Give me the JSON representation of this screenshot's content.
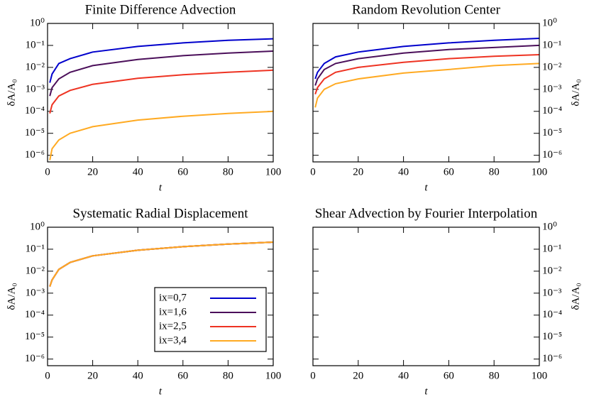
{
  "chart_data": [
    {
      "type": "line",
      "title": "Finite Difference Advection",
      "xlabel": "t",
      "ylabel": "δA/A₀",
      "y_axis_side": "left",
      "ylog": true,
      "x": [
        1,
        2,
        5,
        10,
        20,
        40,
        60,
        80,
        100
      ],
      "xlim": [
        0,
        100
      ],
      "xticks": [
        0,
        20,
        40,
        60,
        80,
        100
      ],
      "ylim": [
        5e-07,
        1
      ],
      "yticks": [
        {
          "value": 1e-06,
          "label": "10⁻⁶"
        },
        {
          "value": 1e-05,
          "label": "10⁻⁵"
        },
        {
          "value": 0.0001,
          "label": "10⁻⁴"
        },
        {
          "value": 0.001,
          "label": "10⁻³"
        },
        {
          "value": 0.01,
          "label": "10⁻²"
        },
        {
          "value": 0.1,
          "label": "10⁻¹"
        },
        {
          "value": 1,
          "label": "10⁰"
        }
      ],
      "series": [
        {
          "color": "#0000cc",
          "values": [
            0.002,
            0.005,
            0.015,
            0.025,
            0.05,
            0.09,
            0.13,
            0.17,
            0.2
          ]
        },
        {
          "color": "#4b0f5a",
          "values": [
            0.0005,
            0.0012,
            0.003,
            0.006,
            0.012,
            0.023,
            0.034,
            0.045,
            0.055
          ]
        },
        {
          "color": "#ee3322",
          "values": [
            8e-05,
            0.0002,
            0.0005,
            0.0009,
            0.0017,
            0.0032,
            0.0046,
            0.006,
            0.0075
          ]
        },
        {
          "color": "#ffaa22",
          "values": [
            6e-07,
            2e-06,
            5e-06,
            1e-05,
            2e-05,
            4e-05,
            6e-05,
            8e-05,
            0.0001
          ]
        }
      ]
    },
    {
      "type": "line",
      "title": "Random Revolution Center",
      "xlabel": "t",
      "ylabel": "δA/A₀",
      "y_axis_side": "right",
      "ylog": true,
      "x": [
        1,
        2,
        5,
        10,
        20,
        40,
        60,
        80,
        100
      ],
      "xlim": [
        0,
        100
      ],
      "xticks": [
        0,
        20,
        40,
        60,
        80,
        100
      ],
      "ylim": [
        5e-07,
        1
      ],
      "yticks": [
        {
          "value": 1e-06,
          "label": "10⁻⁶"
        },
        {
          "value": 1e-05,
          "label": "10⁻⁵"
        },
        {
          "value": 0.0001,
          "label": "10⁻⁴"
        },
        {
          "value": 0.001,
          "label": "10⁻³"
        },
        {
          "value": 0.01,
          "label": "10⁻²"
        },
        {
          "value": 0.1,
          "label": "10⁻¹"
        },
        {
          "value": 1,
          "label": "10⁰"
        }
      ],
      "series": [
        {
          "color": "#0000cc",
          "values": [
            0.003,
            0.006,
            0.015,
            0.03,
            0.05,
            0.09,
            0.13,
            0.17,
            0.21
          ]
        },
        {
          "color": "#4b0f5a",
          "values": [
            0.0015,
            0.003,
            0.008,
            0.015,
            0.025,
            0.045,
            0.065,
            0.08,
            0.1
          ]
        },
        {
          "color": "#ee3322",
          "values": [
            0.0006,
            0.0012,
            0.003,
            0.006,
            0.01,
            0.017,
            0.025,
            0.032,
            0.038
          ]
        },
        {
          "color": "#ffaa22",
          "values": [
            0.00015,
            0.0004,
            0.001,
            0.0018,
            0.003,
            0.0055,
            0.008,
            0.012,
            0.015
          ]
        }
      ]
    },
    {
      "type": "line",
      "title": "Systematic Radial Displacement",
      "xlabel": "t",
      "ylabel": "δA/A₀",
      "y_axis_side": "left",
      "ylog": true,
      "legend": "lower right",
      "x": [
        1,
        2,
        5,
        10,
        20,
        40,
        60,
        80,
        100
      ],
      "xlim": [
        0,
        100
      ],
      "xticks": [
        0,
        20,
        40,
        60,
        80,
        100
      ],
      "ylim": [
        5e-07,
        1
      ],
      "yticks": [
        {
          "value": 1e-06,
          "label": "10⁻⁶"
        },
        {
          "value": 1e-05,
          "label": "10⁻⁵"
        },
        {
          "value": 0.0001,
          "label": "10⁻⁴"
        },
        {
          "value": 0.001,
          "label": "10⁻³"
        },
        {
          "value": 0.01,
          "label": "10⁻²"
        },
        {
          "value": 0.1,
          "label": "10⁻¹"
        },
        {
          "value": 1,
          "label": "10⁰"
        }
      ],
      "series": [
        {
          "name": "ix=0,7",
          "color": "#0000cc",
          "values": [
            0.002,
            0.004,
            0.012,
            0.025,
            0.05,
            0.09,
            0.13,
            0.17,
            0.21
          ]
        },
        {
          "name": "ix=1,6",
          "color": "#4b0f5a",
          "values": [
            0.002,
            0.004,
            0.012,
            0.025,
            0.05,
            0.09,
            0.13,
            0.17,
            0.21
          ]
        },
        {
          "name": "ix=2,5",
          "color": "#ee3322",
          "values": [
            0.002,
            0.004,
            0.012,
            0.025,
            0.05,
            0.09,
            0.13,
            0.17,
            0.21
          ]
        },
        {
          "name": "ix=3,4",
          "color": "#ffaa22",
          "values": [
            0.002,
            0.004,
            0.012,
            0.025,
            0.05,
            0.09,
            0.13,
            0.17,
            0.21
          ]
        }
      ]
    },
    {
      "type": "line",
      "title": "Shear Advection by Fourier Interpolation",
      "xlabel": "t",
      "ylabel": "δA/A₀",
      "y_axis_side": "right",
      "ylog": true,
      "x": [],
      "xlim": [
        0,
        100
      ],
      "xticks": [
        0,
        20,
        40,
        60,
        80,
        100
      ],
      "ylim": [
        5e-07,
        1
      ],
      "yticks": [
        {
          "value": 1e-06,
          "label": "10⁻⁶"
        },
        {
          "value": 1e-05,
          "label": "10⁻⁵"
        },
        {
          "value": 0.0001,
          "label": "10⁻⁴"
        },
        {
          "value": 0.001,
          "label": "10⁻³"
        },
        {
          "value": 0.01,
          "label": "10⁻²"
        },
        {
          "value": 0.1,
          "label": "10⁻¹"
        },
        {
          "value": 1,
          "label": "10⁰"
        }
      ],
      "series": []
    }
  ]
}
